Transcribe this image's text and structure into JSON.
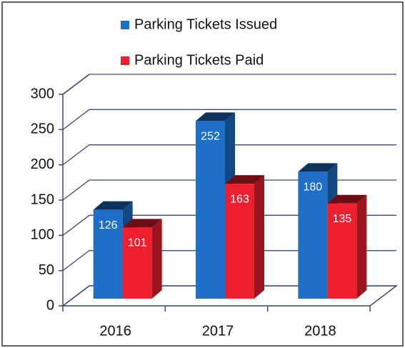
{
  "chart_data": {
    "type": "bar",
    "categories": [
      "2016",
      "2017",
      "2018"
    ],
    "series": [
      {
        "name": "Parking Tickets Issued",
        "color": "#1f6fc8",
        "values": [
          126,
          252,
          180
        ]
      },
      {
        "name": "Parking Tickets Paid",
        "color": "#ee2030",
        "values": [
          101,
          163,
          135
        ]
      }
    ],
    "ylim": [
      0,
      300
    ],
    "yticks": [
      0,
      50,
      100,
      150,
      200,
      250,
      300
    ],
    "grid": true,
    "legend": "top"
  }
}
